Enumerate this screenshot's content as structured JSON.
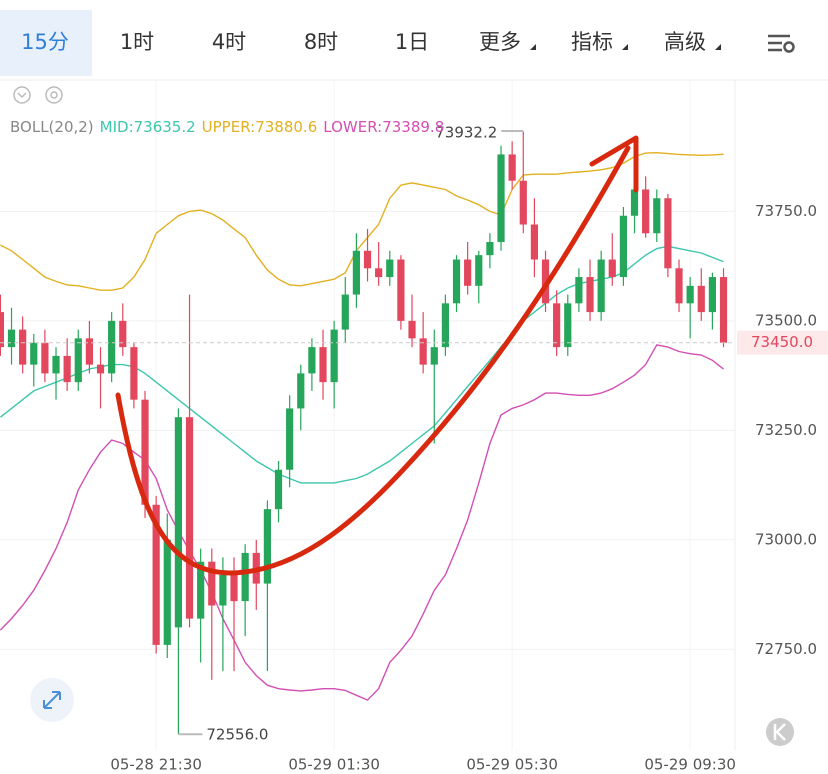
{
  "tabs": [
    "15分",
    "1时",
    "4时",
    "8时",
    "1日",
    "更多",
    "指标",
    "高级"
  ],
  "chart_data": {
    "type": "candlestick",
    "indicator": "BOLL(20,2)",
    "categories": [
      null,
      null,
      null,
      null,
      null,
      null,
      null,
      null,
      null,
      null,
      null,
      null,
      null,
      null,
      "05-28 21:30",
      null,
      null,
      null,
      null,
      null,
      null,
      null,
      null,
      null,
      null,
      null,
      null,
      null,
      null,
      null,
      "05-29 01:30",
      null,
      null,
      null,
      null,
      null,
      null,
      null,
      null,
      null,
      null,
      null,
      null,
      null,
      null,
      null,
      "05-29 05:30",
      null,
      null,
      null,
      null,
      null,
      null,
      null,
      null,
      null,
      null,
      null,
      null,
      null,
      null,
      null,
      "05-29 09:30",
      null,
      null,
      null
    ],
    "open": [
      73520,
      73440,
      73480,
      73400,
      73450,
      73380,
      73420,
      73360,
      73460,
      73400,
      73380,
      73500,
      73440,
      73320,
      73080,
      72760,
      72800,
      73280,
      72820,
      72950,
      72850,
      72920,
      72860,
      72970,
      72900,
      73070,
      73160,
      73300,
      73380,
      73440,
      73360,
      73480,
      73560,
      73660,
      73620,
      73600,
      73640,
      73500,
      73460,
      73400,
      73440,
      73540,
      73640,
      73580,
      73650,
      73680,
      73880,
      73820,
      73720,
      73640,
      73540,
      73440,
      73540,
      73600,
      73520,
      73640,
      73600,
      73740,
      73800,
      73700,
      73780,
      73620,
      73540,
      73580,
      73520,
      73600
    ],
    "high": [
      73560,
      73530,
      73510,
      73470,
      73480,
      73440,
      73460,
      73480,
      73500,
      73440,
      73520,
      73540,
      73450,
      73340,
      73100,
      73060,
      73300,
      73560,
      72980,
      72980,
      72960,
      72960,
      72990,
      73000,
      73090,
      73180,
      73330,
      73400,
      73460,
      73480,
      73500,
      73600,
      73700,
      73710,
      73680,
      73660,
      73650,
      73560,
      73520,
      73480,
      73560,
      73650,
      73680,
      73660,
      73700,
      73900,
      73910,
      73932.2,
      73780,
      73660,
      73570,
      73560,
      73620,
      73640,
      73660,
      73700,
      73760,
      73820,
      73830,
      73800,
      73790,
      73640,
      73600,
      73620,
      73610,
      73620
    ],
    "low": [
      73420,
      73400,
      73380,
      73350,
      73360,
      73320,
      73340,
      73340,
      73380,
      73300,
      73360,
      73420,
      73300,
      73050,
      72740,
      72730,
      72556,
      72800,
      72720,
      72680,
      72700,
      72700,
      72780,
      72840,
      72700,
      73040,
      73120,
      73250,
      73340,
      73320,
      73300,
      73450,
      73530,
      73590,
      73580,
      73580,
      73480,
      73440,
      73380,
      73220,
      73420,
      73520,
      73560,
      73540,
      73620,
      73660,
      73800,
      73700,
      73600,
      73520,
      73420,
      73420,
      73520,
      73500,
      73500,
      73580,
      73580,
      73700,
      73690,
      73680,
      73600,
      73520,
      73460,
      73500,
      73480,
      73440
    ],
    "close": [
      73440,
      73480,
      73400,
      73450,
      73380,
      73420,
      73360,
      73460,
      73400,
      73380,
      73500,
      73440,
      73320,
      73080,
      72760,
      73000,
      73280,
      72820,
      72950,
      72850,
      72920,
      72860,
      72970,
      72900,
      73070,
      73160,
      73300,
      73380,
      73440,
      73360,
      73480,
      73560,
      73660,
      73620,
      73600,
      73640,
      73500,
      73460,
      73400,
      73440,
      73540,
      73640,
      73580,
      73650,
      73680,
      73880,
      73820,
      73720,
      73640,
      73540,
      73440,
      73540,
      73600,
      73520,
      73640,
      73600,
      73740,
      73800,
      73700,
      73780,
      73620,
      73540,
      73580,
      73520,
      73600,
      73450
    ],
    "up_color": "#26a65b",
    "down_color": "#e2475d",
    "series": [
      {
        "name": "MID:73635.2",
        "color": "#3cc7ad",
        "values": [
          73280,
          73300,
          73320,
          73340,
          73350,
          73360,
          73370,
          73380,
          73390,
          73395,
          73400,
          73400,
          73395,
          73380,
          73360,
          73340,
          73320,
          73300,
          73280,
          73260,
          73240,
          73220,
          73200,
          73180,
          73165,
          73150,
          73140,
          73130,
          73130,
          73130,
          73130,
          73135,
          73140,
          73150,
          73165,
          73180,
          73200,
          73220,
          73240,
          73260,
          73290,
          73320,
          73350,
          73380,
          73410,
          73440,
          73470,
          73500,
          73520,
          73540,
          73560,
          73575,
          73585,
          73590,
          73595,
          73600,
          73610,
          73630,
          73650,
          73665,
          73670,
          73665,
          73660,
          73655,
          73645,
          73635.2
        ]
      },
      {
        "name": "UPPER:73880.6",
        "color": "#e3b021",
        "values": [
          73673,
          73660,
          73640,
          73620,
          73600,
          73590,
          73582,
          73580,
          73575,
          73570,
          73570,
          73575,
          73600,
          73640,
          73700,
          73720,
          73740,
          73750,
          73753,
          73745,
          73730,
          73710,
          73690,
          73650,
          73616,
          73595,
          73582,
          73580,
          73585,
          73590,
          73595,
          73610,
          73660,
          73690,
          73720,
          73780,
          73810,
          73815,
          73810,
          73805,
          73800,
          73785,
          73776,
          73765,
          73750,
          73742,
          73800,
          73833,
          73835,
          73835,
          73835,
          73838,
          73840,
          73842,
          73845,
          73850,
          73860,
          73875,
          73883,
          73884,
          73882,
          73880,
          73879,
          73878,
          73879,
          73880.6
        ]
      },
      {
        "name": "LOWER:73389.8",
        "color": "#d24fb4",
        "values": [
          72794,
          72820,
          72850,
          72885,
          72930,
          72980,
          73040,
          73114,
          73160,
          73200,
          73228,
          73220,
          73200,
          73182,
          73140,
          73068,
          73020,
          72975,
          72931,
          72880,
          72820,
          72771,
          72720,
          72690,
          72668,
          72660,
          72657,
          72655,
          72657,
          72660,
          72660,
          72656,
          72645,
          72634,
          72660,
          72720,
          72748,
          72780,
          72830,
          72885,
          72920,
          72980,
          73045,
          73130,
          73220,
          73285,
          73300,
          73308,
          73320,
          73335,
          73335,
          73332,
          73330,
          73330,
          73335,
          73345,
          73360,
          73376,
          73400,
          73445,
          73440,
          73430,
          73425,
          73422,
          73410,
          73389.8
        ]
      }
    ],
    "ylim": [
      72520,
      74050
    ],
    "yticks": [
      {
        "value": 73750,
        "label": "73750.0"
      },
      {
        "value": 73500,
        "label": "73500.0"
      },
      {
        "value": 73250,
        "label": "73250.0"
      },
      {
        "value": 73000,
        "label": "73000.0"
      },
      {
        "value": 72750,
        "label": "72750.0"
      }
    ],
    "grid": true,
    "last_price": {
      "value": 73450,
      "label": "73450.0"
    },
    "high_label": "73932.2",
    "low_label": "72556.0"
  }
}
